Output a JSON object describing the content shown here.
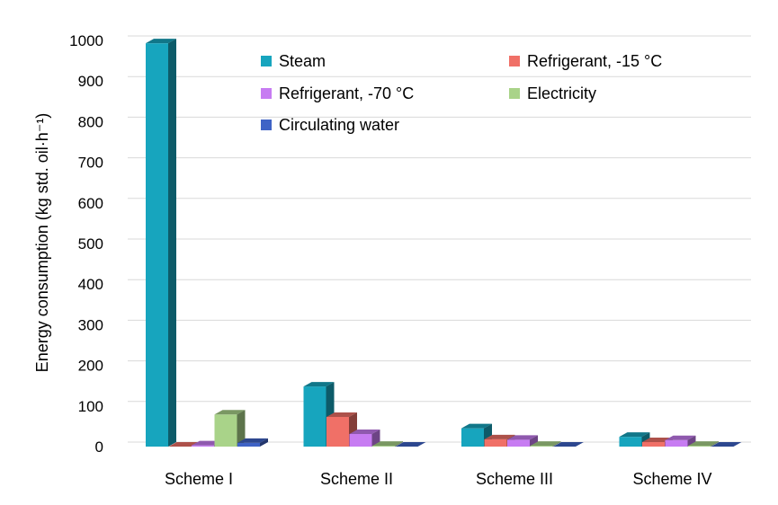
{
  "chart_data": {
    "type": "bar",
    "style": "3d-clustered",
    "categories": [
      "Scheme I",
      "Scheme II",
      "Scheme III",
      "Scheme IV"
    ],
    "series": [
      {
        "name": "Steam",
        "values": [
          993,
          148,
          45,
          24
        ],
        "color": "#17A5BE"
      },
      {
        "name": "Refrigerant, -15 °C",
        "values": [
          0,
          73,
          18,
          11
        ],
        "color": "#F07067"
      },
      {
        "name": "Refrigerant, -70 °C",
        "values": [
          3,
          31,
          17,
          16
        ],
        "color": "#C77CF2"
      },
      {
        "name": "Electricity",
        "values": [
          79,
          2,
          2,
          2
        ],
        "color": "#A9D389"
      },
      {
        "name": "Circulating water",
        "values": [
          9,
          0,
          0,
          0
        ],
        "color": "#3F63C6"
      }
    ],
    "ylabel": "Energy consumption (kg std. oil·h⁻¹)",
    "ylim": [
      0,
      1000
    ],
    "yticks": [
      0,
      100,
      200,
      300,
      400,
      500,
      600,
      700,
      800,
      900,
      1000
    ],
    "grid": true,
    "legend_position": "top-right, inside plot"
  }
}
